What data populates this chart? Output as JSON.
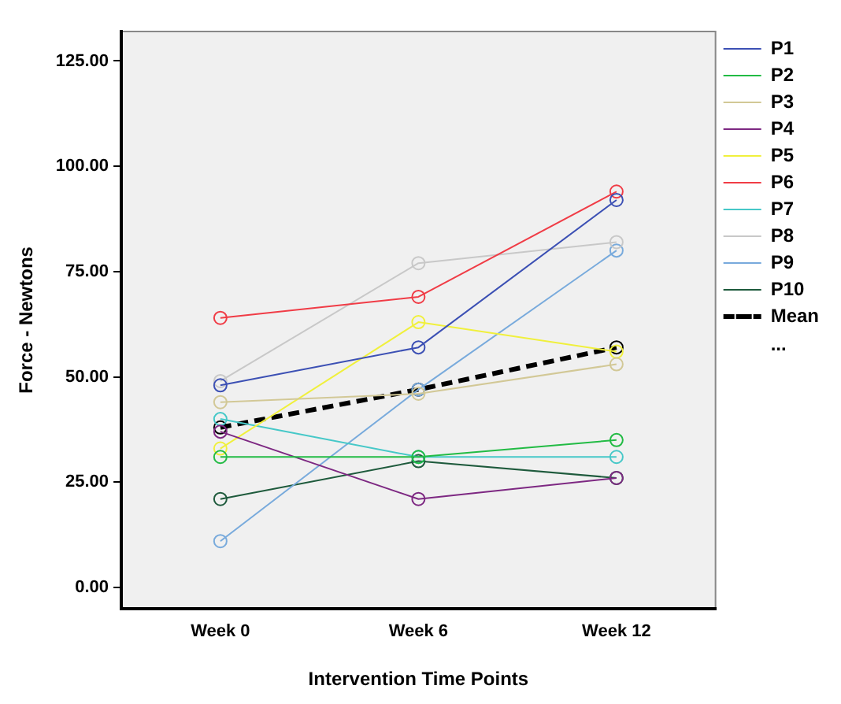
{
  "chart_data": {
    "type": "line",
    "xlabel": "Intervention Time Points",
    "ylabel": "Force - Newtons",
    "categories": [
      "Week 0",
      "Week 6",
      "Week 12"
    ],
    "ylim": [
      -5,
      132
    ],
    "yticks": [
      {
        "value": 0,
        "label": "0.00"
      },
      {
        "value": 25,
        "label": "25.00"
      },
      {
        "value": 50,
        "label": "50.00"
      },
      {
        "value": 75,
        "label": "75.00"
      },
      {
        "value": 100,
        "label": "100.00"
      },
      {
        "value": 125,
        "label": "125.00"
      }
    ],
    "grid": false,
    "legend": "right",
    "marker": "circle",
    "line_style": "solid",
    "annotations": [
      "..."
    ],
    "series": [
      {
        "name": "P1",
        "color": "#3c50b4",
        "values": [
          48,
          57,
          92
        ]
      },
      {
        "name": "P2",
        "color": "#22bb44",
        "values": [
          31,
          31,
          35
        ]
      },
      {
        "name": "P3",
        "color": "#d2c896",
        "values": [
          44,
          46,
          53
        ]
      },
      {
        "name": "P4",
        "color": "#7d2882",
        "values": [
          37,
          21,
          26
        ]
      },
      {
        "name": "P5",
        "color": "#f0f03c",
        "values": [
          33,
          63,
          56
        ]
      },
      {
        "name": "P6",
        "color": "#f03c46",
        "values": [
          64,
          69,
          94
        ]
      },
      {
        "name": "P7",
        "color": "#46c8c8",
        "values": [
          40,
          31,
          31
        ]
      },
      {
        "name": "P8",
        "color": "#c8c8c8",
        "values": [
          49,
          77,
          82
        ]
      },
      {
        "name": "P9",
        "color": "#78aadc",
        "values": [
          11,
          47,
          80
        ]
      },
      {
        "name": "P10",
        "color": "#1e5a3c",
        "values": [
          21,
          30,
          26
        ]
      },
      {
        "name": "Mean",
        "color": "#000000",
        "values": [
          38,
          47,
          57
        ],
        "line_style": "dashed"
      }
    ]
  }
}
